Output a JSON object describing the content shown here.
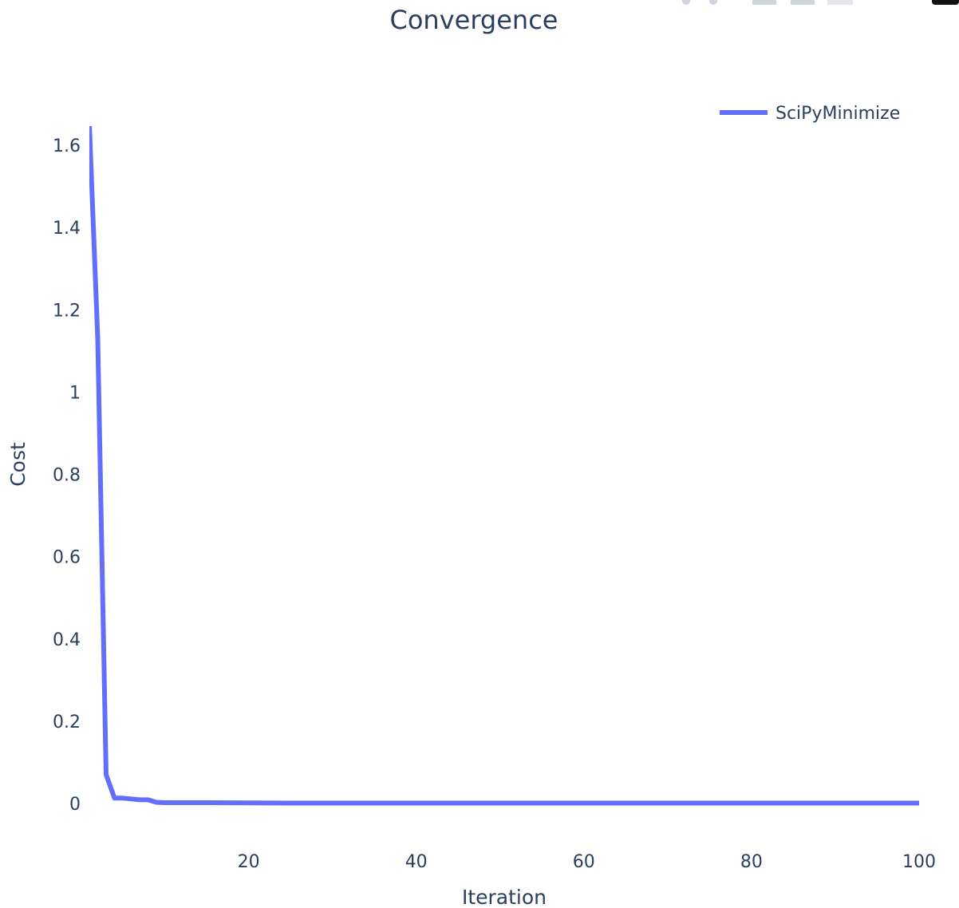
{
  "modebar": {
    "buttons": [
      "camera-icon",
      "zoom-icon",
      "pan-icon",
      "zoom-in-icon",
      "zoom-out-icon",
      "autoscale-icon",
      "reset-axes-icon",
      "plotly-logo-icon"
    ]
  },
  "chart_data": {
    "type": "line",
    "title": "Convergence",
    "xlabel": "Iteration",
    "ylabel": "Cost",
    "xlim": [
      1,
      100
    ],
    "ylim": [
      -0.1,
      1.65
    ],
    "xticks": [
      20,
      40,
      60,
      80,
      100
    ],
    "xtick_labels": [
      "20",
      "40",
      "60",
      "80",
      "100"
    ],
    "yticks": [
      0,
      0.2,
      0.4,
      0.6,
      0.8,
      1,
      1.2,
      1.4,
      1.6
    ],
    "ytick_labels": [
      "0",
      "0.2",
      "0.4",
      "0.6",
      "0.8",
      "1",
      "1.2",
      "1.4",
      "1.6"
    ],
    "grid": false,
    "legend_position": "top-right",
    "series": [
      {
        "name": "SciPyMinimize",
        "color": "#636efa",
        "x": [
          1,
          2,
          3,
          4,
          5,
          6,
          7,
          8,
          9,
          10,
          12,
          15,
          20,
          25,
          30,
          40,
          50,
          60,
          70,
          80,
          90,
          100
        ],
        "y": [
          1.65,
          1.13,
          0.07,
          0.013,
          0.013,
          0.011,
          0.009,
          0.009,
          0.003,
          0.002,
          0.002,
          0.002,
          0.0015,
          0.001,
          0.001,
          0.001,
          0.001,
          0.001,
          0.001,
          0.001,
          0.001,
          0.001
        ]
      }
    ]
  }
}
